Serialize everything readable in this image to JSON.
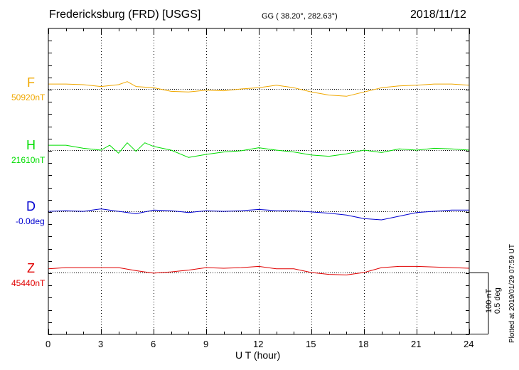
{
  "header": {
    "station": "Fredericksburg (FRD)  [USGS]",
    "coords": "GG ( 38.20°, 282.63°)",
    "date": "2018/11/12"
  },
  "footer": {
    "plotted": "Plotted at 2019/01/29 07:59 UT",
    "scale_nt": "100 nT",
    "scale_deg": "0.5 deg"
  },
  "chart_data": {
    "type": "line",
    "xlabel": "U T (hour)",
    "xlim": [
      0,
      24
    ],
    "xticks": [
      0,
      3,
      6,
      9,
      12,
      15,
      18,
      21,
      24
    ],
    "grid": "vertical dotted at every 3 hours",
    "scale": {
      "nT_per_bar": 100,
      "deg_per_bar": 0.5
    },
    "series": [
      {
        "name": "F",
        "baseline": "50920nT",
        "color": "#F0A800",
        "x": [
          0,
          1,
          2,
          3,
          4,
          4.5,
          5,
          6,
          7,
          8,
          9,
          10,
          11,
          12,
          13,
          14,
          15,
          16,
          17,
          18,
          19,
          20,
          21,
          22,
          23,
          24
        ],
        "y": [
          8,
          8,
          7,
          4,
          7,
          12,
          4,
          2,
          -4,
          -5,
          -2,
          -3,
          0,
          2,
          6,
          2,
          -5,
          -10,
          -12,
          -5,
          2,
          5,
          6,
          8,
          8,
          6
        ]
      },
      {
        "name": "H",
        "baseline": "21610nT",
        "color": "#00DD00",
        "x": [
          0,
          1,
          2,
          3,
          3.5,
          4,
          4.5,
          5,
          5.5,
          6,
          7,
          8,
          9,
          10,
          11,
          12,
          13,
          14,
          15,
          16,
          17,
          18,
          19,
          20,
          21,
          22,
          23,
          24
        ],
        "y": [
          8,
          8,
          3,
          0,
          8,
          -5,
          12,
          -2,
          12,
          6,
          0,
          -12,
          -7,
          -3,
          -1,
          4,
          0,
          -3,
          -8,
          -10,
          -6,
          0,
          -4,
          2,
          0,
          3,
          2,
          0
        ]
      },
      {
        "name": "D",
        "baseline": "-0.0deg",
        "color": "#0000D0",
        "x": [
          0,
          1,
          2,
          3,
          4,
          5,
          6,
          7,
          8,
          9,
          10,
          11,
          12,
          13,
          14,
          15,
          16,
          17,
          18,
          19,
          20,
          21,
          22,
          23,
          24
        ],
        "y": [
          0,
          1,
          0,
          4,
          0,
          -4,
          2,
          1,
          -2,
          1,
          0,
          1,
          3,
          1,
          1,
          -1,
          -3,
          -6,
          -12,
          -14,
          -8,
          -2,
          0,
          2,
          2
        ]
      },
      {
        "name": "Z",
        "baseline": "45440nT",
        "color": "#E00000",
        "x": [
          0,
          1,
          2,
          3,
          4,
          5,
          6,
          7,
          8,
          9,
          10,
          11,
          12,
          13,
          14,
          15,
          16,
          17,
          18,
          19,
          20,
          21,
          22,
          23,
          24
        ],
        "y": [
          6,
          8,
          8,
          8,
          8,
          3,
          -1,
          1,
          4,
          8,
          7,
          8,
          10,
          6,
          6,
          0,
          -3,
          -4,
          0,
          8,
          10,
          10,
          9,
          8,
          7
        ]
      }
    ]
  }
}
